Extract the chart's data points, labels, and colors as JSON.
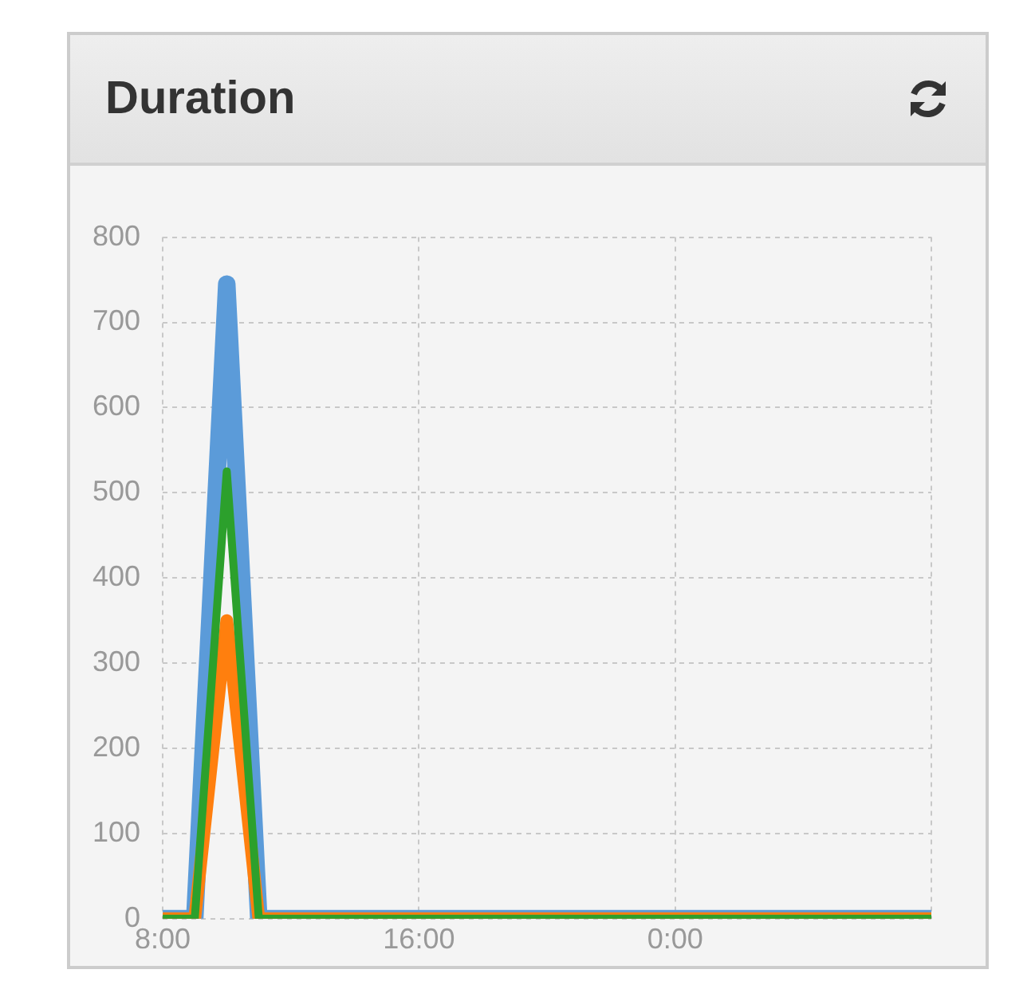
{
  "chart_data": {
    "type": "line",
    "title": "Duration",
    "x": [
      8,
      9,
      10,
      11,
      32
    ],
    "series": [
      {
        "color": "#5b9bd9",
        "values": [
          0,
          0,
          745,
          0,
          0
        ]
      },
      {
        "color": "#ff7f0e",
        "values": [
          0,
          0,
          350,
          0,
          0
        ]
      },
      {
        "color": "#2ca02c",
        "values": [
          0,
          0,
          525,
          0,
          0
        ]
      }
    ],
    "xlim": [
      8,
      32
    ],
    "xticks": [
      {
        "value": 8,
        "label": "8:00"
      },
      {
        "value": 16,
        "label": "16:00"
      },
      {
        "value": 24,
        "label": "0:00"
      },
      {
        "value": 32,
        "label": null
      }
    ],
    "ylim": [
      0,
      800
    ],
    "yticks": [
      0,
      100,
      200,
      300,
      400,
      500,
      600,
      700,
      800
    ],
    "grid": true,
    "legend": false,
    "marker": "none",
    "line_style": "solid"
  }
}
